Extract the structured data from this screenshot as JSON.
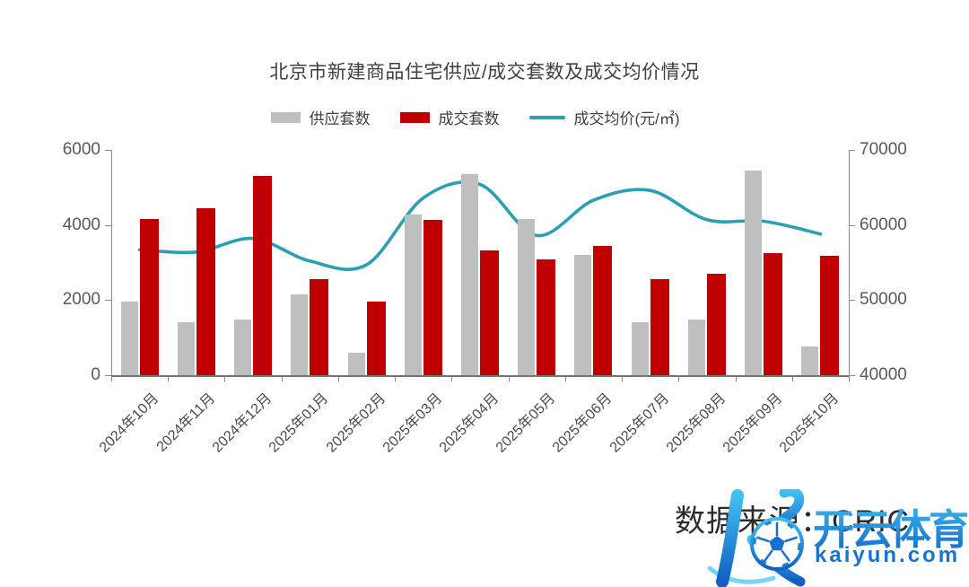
{
  "title": "北京市新建商品住宅供应/成交套数及成交均价情况",
  "chart_data": {
    "type": "bar+line",
    "title": "北京市新建商品住宅供应/成交套数及成交均价情况",
    "categories": [
      "2024年10月",
      "2024年11月",
      "2024年12月",
      "2025年01月",
      "2025年02月",
      "2025年03月",
      "2025年04月",
      "2025年05月",
      "2025年06月",
      "2025年07月",
      "2025年08月",
      "2025年09月",
      "2025年10月"
    ],
    "series": [
      {
        "name": "供应套数",
        "type": "bar",
        "axis": "left",
        "color": "#BFBFBF",
        "values": [
          1950,
          1400,
          1480,
          2150,
          600,
          4280,
          5350,
          4150,
          3200,
          1400,
          1480,
          5450,
          760
        ]
      },
      {
        "name": "成交套数",
        "type": "bar",
        "axis": "left",
        "color": "#C00000",
        "values": [
          4150,
          4450,
          5300,
          2550,
          1970,
          4140,
          3330,
          3080,
          3440,
          2550,
          2700,
          3250,
          3180
        ]
      },
      {
        "name": "成交均价(元/㎡)",
        "type": "line",
        "axis": "right",
        "color": "#2D9FB4",
        "values": [
          56700,
          56400,
          58200,
          55200,
          54700,
          63600,
          65400,
          58600,
          63300,
          64600,
          60700,
          60500,
          58800
        ]
      }
    ],
    "left_axis": {
      "min": 0,
      "max": 6000,
      "ticks": [
        0,
        2000,
        4000,
        6000
      ]
    },
    "right_axis": {
      "min": 40000,
      "max": 70000,
      "ticks": [
        40000,
        50000,
        60000,
        70000
      ]
    },
    "grid": false,
    "legend_position": "top"
  },
  "footer": {
    "source": "数据来源：CRIC"
  },
  "watermark": {
    "brand": "开云体育",
    "domain": "kaiyun.com",
    "colors": {
      "blue_light": "#3EC0F0",
      "blue_dark": "#1565C8",
      "domain_blue": "#1773D1"
    }
  }
}
